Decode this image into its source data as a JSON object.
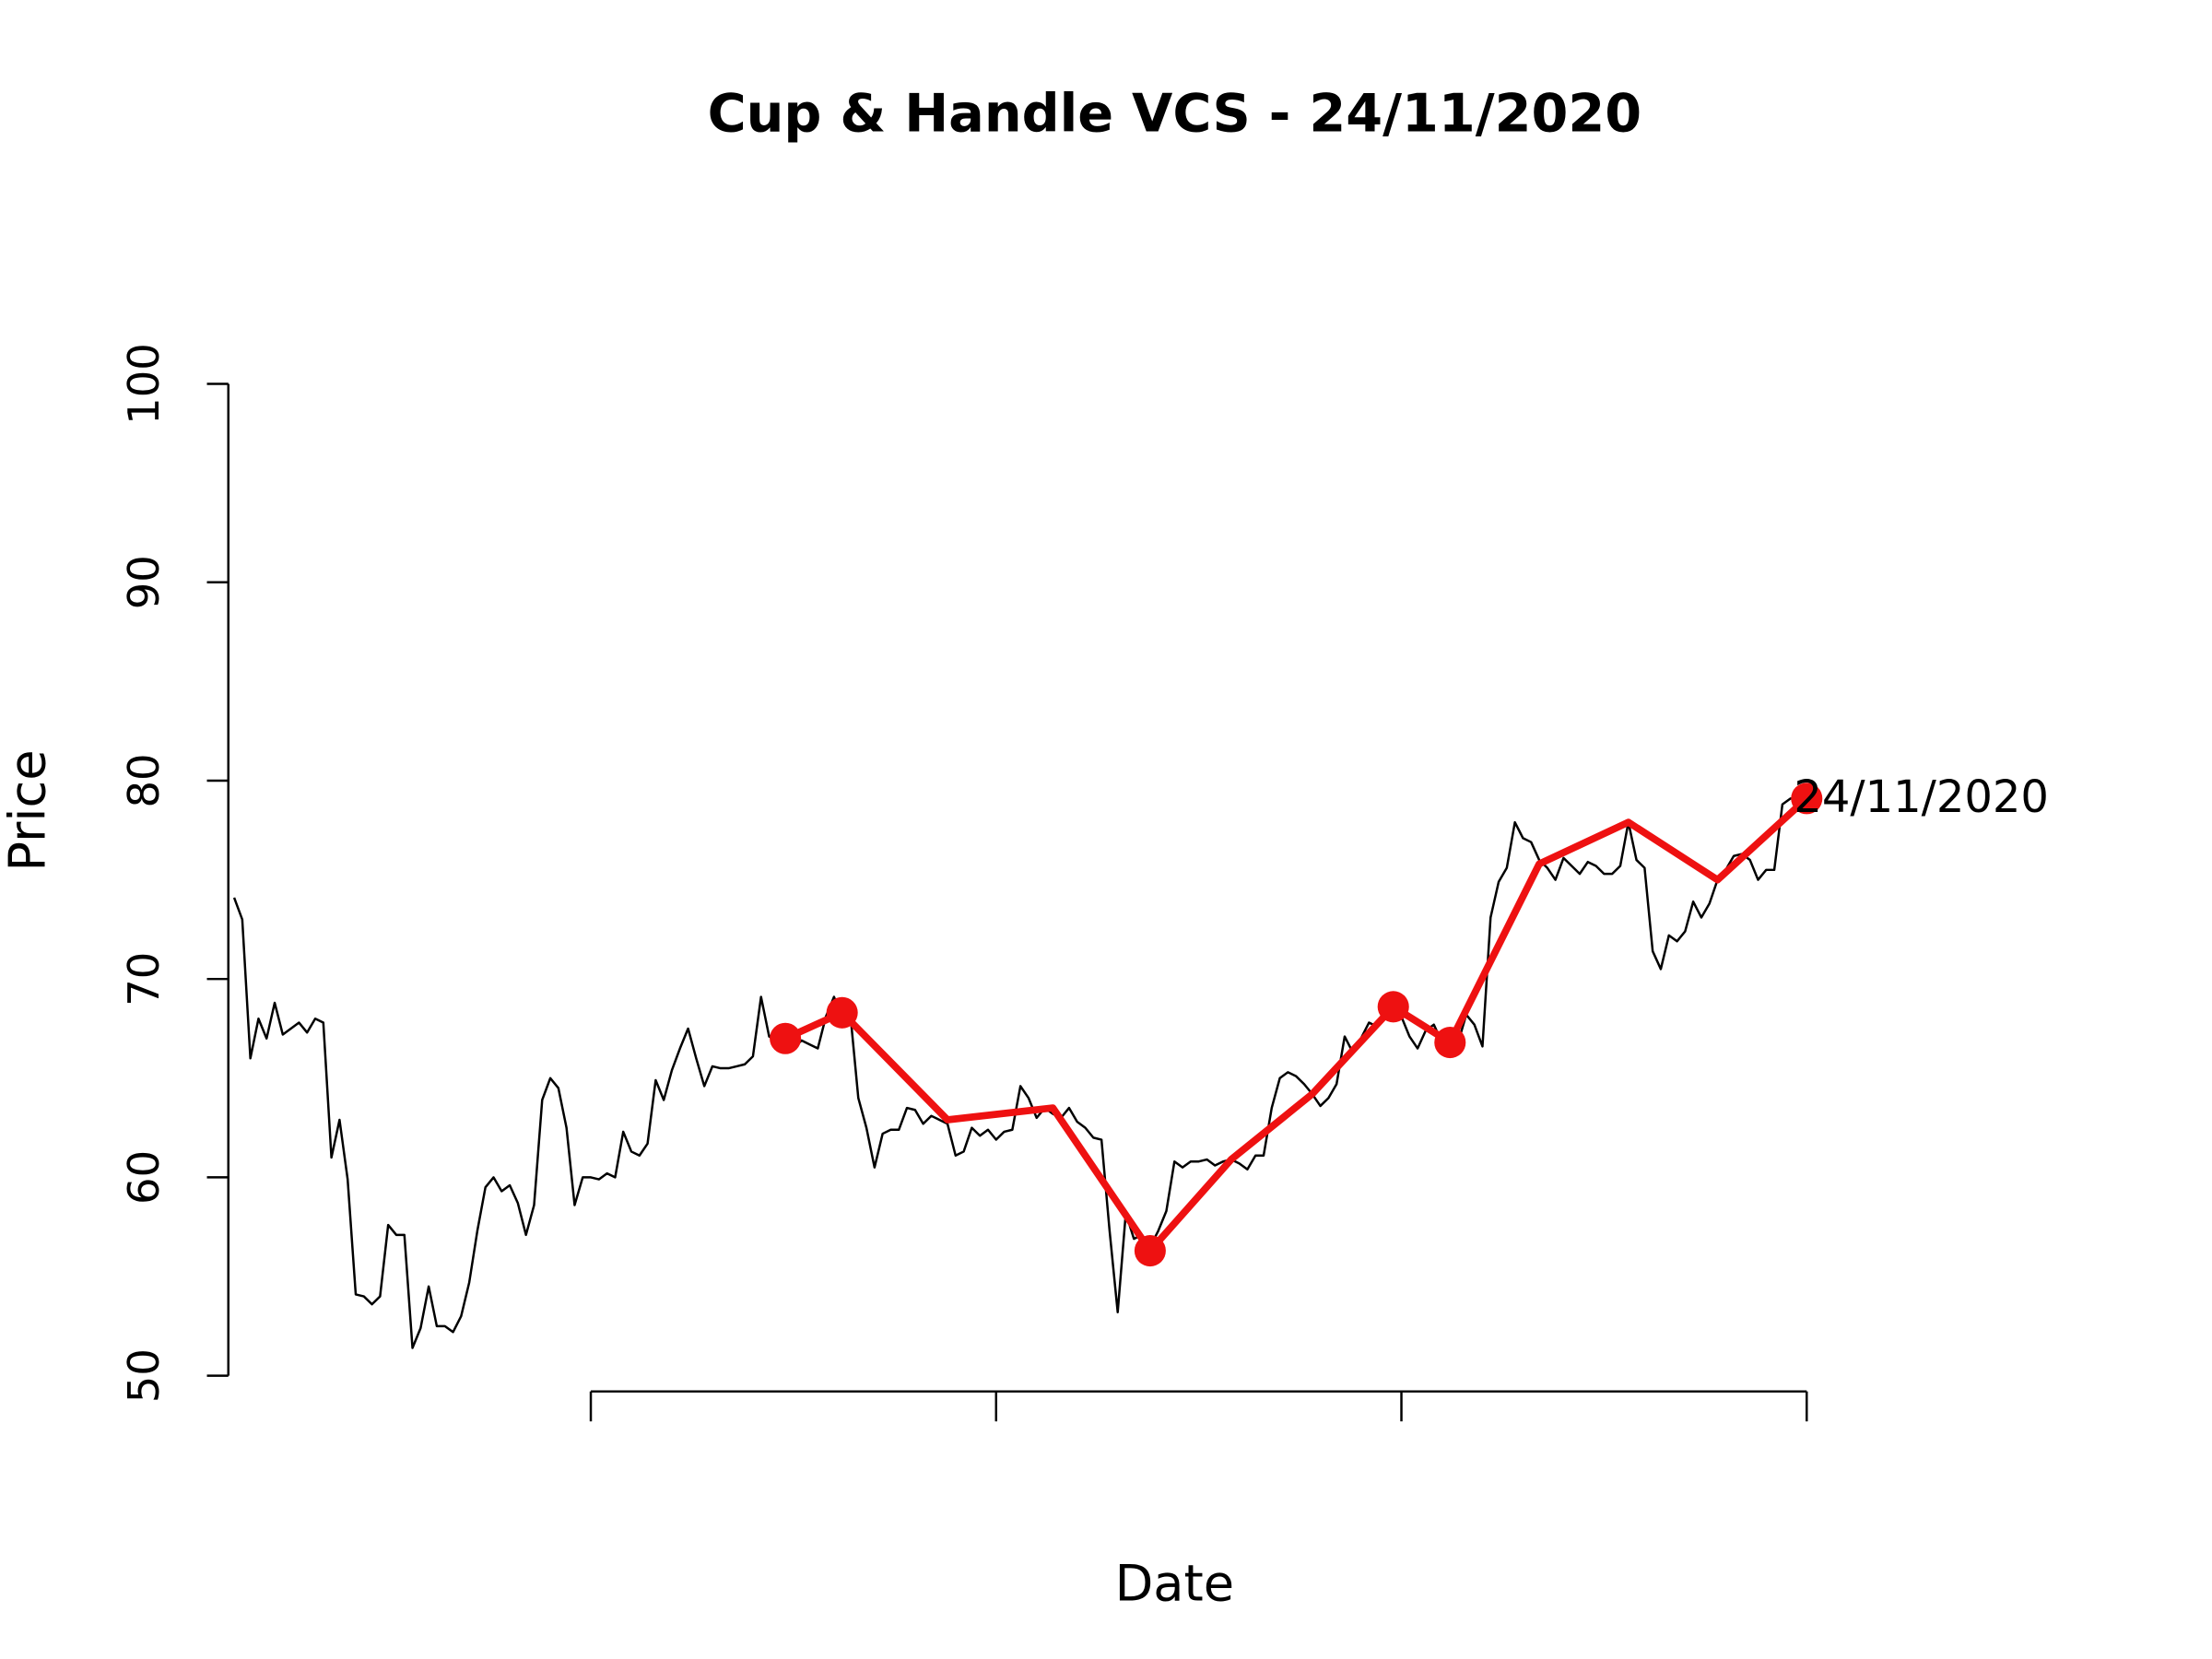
{
  "chart_data": {
    "type": "line",
    "title": "Cup & Handle VCS - 24/11/2020",
    "xlabel": "Date",
    "ylabel": "Price",
    "xlim": [
      0,
      200
    ],
    "xticks": [
      50,
      100,
      150,
      200
    ],
    "ylim": [
      50,
      100
    ],
    "yticks": [
      50,
      60,
      70,
      80,
      90,
      100
    ],
    "series": [
      {
        "color": "#000000",
        "style": "line",
        "x": [
          6,
          7,
          8,
          9,
          10,
          11,
          12,
          13,
          14,
          15,
          16,
          17,
          18,
          19,
          20,
          21,
          22,
          23,
          24,
          25,
          26,
          27,
          28,
          29,
          30,
          31,
          32,
          33,
          34,
          35,
          36,
          37,
          38,
          39,
          40,
          41,
          42,
          43,
          44,
          45,
          46,
          47,
          48,
          49,
          50,
          51,
          52,
          53,
          54,
          55,
          56,
          57,
          58,
          59,
          60,
          61,
          62,
          63,
          64,
          65,
          66,
          67,
          68,
          69,
          70,
          71,
          72,
          73,
          74,
          75,
          76,
          77,
          78,
          79,
          80,
          81,
          82,
          83,
          84,
          85,
          86,
          87,
          88,
          89,
          90,
          91,
          92,
          93,
          94,
          95,
          96,
          97,
          98,
          99,
          100,
          101,
          102,
          103,
          104,
          105,
          106,
          107,
          108,
          109,
          110,
          111,
          112,
          113,
          114,
          115,
          116,
          117,
          118,
          119,
          120,
          121,
          122,
          123,
          124,
          125,
          126,
          127,
          128,
          129,
          130,
          131,
          132,
          133,
          134,
          135,
          136,
          137,
          138,
          139,
          140,
          141,
          142,
          143,
          144,
          145,
          146,
          147,
          148,
          149,
          150,
          151,
          152,
          153,
          154,
          155,
          156,
          157,
          158,
          159,
          160,
          161,
          162,
          163,
          164,
          165,
          166,
          167,
          168,
          169,
          170,
          171,
          172,
          173,
          174,
          175,
          176,
          177,
          178,
          179,
          180,
          181,
          182,
          183,
          184,
          185,
          186,
          187,
          188,
          189,
          190,
          191,
          192,
          193,
          194,
          195,
          196,
          197,
          198,
          199,
          200
        ],
        "values": [
          74.1,
          73.0,
          66.0,
          68.0,
          67.0,
          68.8,
          67.2,
          67.5,
          67.8,
          67.3,
          68.0,
          67.8,
          61.0,
          62.9,
          59.9,
          54.1,
          54.0,
          53.6,
          54.0,
          57.6,
          57.1,
          57.1,
          51.4,
          52.4,
          54.5,
          52.5,
          52.5,
          52.2,
          53.0,
          54.7,
          57.3,
          59.5,
          60.0,
          59.3,
          59.6,
          58.7,
          57.1,
          58.6,
          63.9,
          65.0,
          64.5,
          62.5,
          58.6,
          60.0,
          60.0,
          59.9,
          60.2,
          60.0,
          62.3,
          61.3,
          61.1,
          61.7,
          64.9,
          63.9,
          65.4,
          66.5,
          67.5,
          66.0,
          64.6,
          65.6,
          65.5,
          65.5,
          65.6,
          65.7,
          66.1,
          69.1,
          67.1,
          66.9,
          66.9,
          66.5,
          66.9,
          66.7,
          66.5,
          68.1,
          69.1,
          68.1,
          68.3,
          64.0,
          62.5,
          60.5,
          62.2,
          62.4,
          62.4,
          63.5,
          63.4,
          62.7,
          63.1,
          62.9,
          62.7,
          61.1,
          61.3,
          62.5,
          62.1,
          62.4,
          61.9,
          62.3,
          62.4,
          64.6,
          64.0,
          63.0,
          63.5,
          63.2,
          63.0,
          63.5,
          62.8,
          62.5,
          62.0,
          61.9,
          57.3,
          53.2,
          58.2,
          56.9,
          57.1,
          56.5,
          57.3,
          58.3,
          60.8,
          60.5,
          60.8,
          60.8,
          60.9,
          60.6,
          60.8,
          60.9,
          60.7,
          60.4,
          61.1,
          61.1,
          63.5,
          65.0,
          65.3,
          65.1,
          64.7,
          64.2,
          63.6,
          64.0,
          64.7,
          67.1,
          66.3,
          67.0,
          67.8,
          67.6,
          68.4,
          68.1,
          68.1,
          67.1,
          66.5,
          67.4,
          67.7,
          66.8,
          66.9,
          66.8,
          68.2,
          67.7,
          66.6,
          73.1,
          74.9,
          75.6,
          77.9,
          77.1,
          76.9,
          76.0,
          75.6,
          75.0,
          76.1,
          75.7,
          75.3,
          75.9,
          75.7,
          75.3,
          75.3,
          75.7,
          77.9,
          76.0,
          75.6,
          71.4,
          70.5,
          72.2,
          71.9,
          72.4,
          73.9,
          73.1,
          73.8,
          75.0,
          75.5,
          76.2,
          76.3,
          76.0,
          75.0,
          75.5,
          75.5,
          78.8,
          79.1,
          79.1,
          79.1
        ]
      },
      {
        "color": "#ee1111",
        "style": "line",
        "x": [
          74,
          81,
          94,
          107,
          119,
          129,
          139,
          149,
          156,
          167,
          178,
          189,
          200
        ],
        "values": [
          67.0,
          68.3,
          62.9,
          63.5,
          56.3,
          60.9,
          64.2,
          68.6,
          66.8,
          75.8,
          77.9,
          75.0,
          79.1
        ]
      },
      {
        "color": "#ee1111",
        "style": "points",
        "x": [
          74,
          81,
          119,
          149,
          156,
          200
        ],
        "values": [
          67.0,
          68.3,
          56.3,
          68.6,
          66.8,
          79.1
        ]
      }
    ],
    "annotations": [
      {
        "text": "24/11/2020",
        "x": 200,
        "y": 79.1
      }
    ]
  }
}
